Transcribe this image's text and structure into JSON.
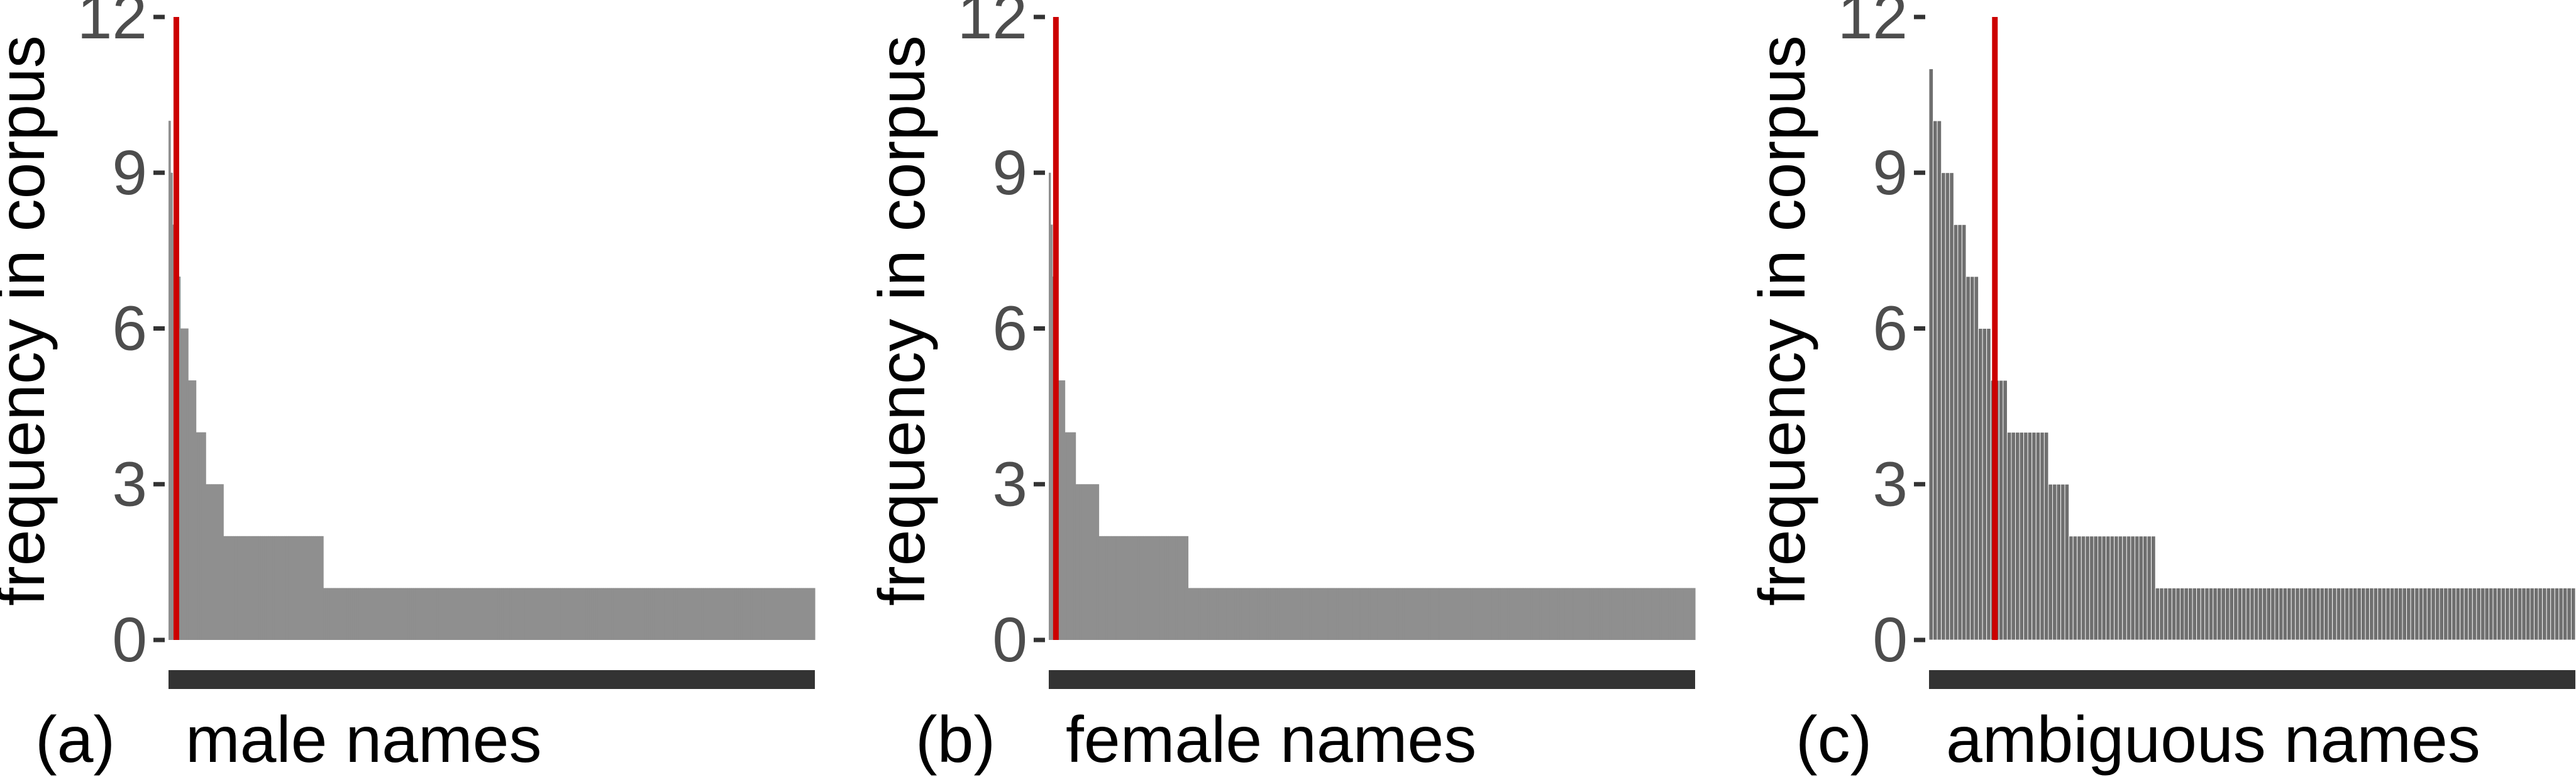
{
  "colors": {
    "bar": "#8f8f8f",
    "bar_dense": "#6f6f6f",
    "threshold": "#cc0000",
    "axis_text": "#4d4d4d",
    "tick": "#333333",
    "category_bar": "#333333"
  },
  "chart_data": [
    {
      "type": "bar",
      "panel_label": "(a)",
      "category_label": "male names",
      "ylabel": "frequency in corpus",
      "xlabel": "",
      "ylim": [
        0,
        12
      ],
      "yticks": [
        0,
        3,
        6,
        9,
        12
      ],
      "threshold_rank": 4,
      "bar_style": "smooth",
      "values": [
        10,
        9,
        8,
        8,
        7,
        7,
        6,
        6,
        6,
        6,
        5,
        5,
        5,
        5,
        4,
        4,
        4,
        4,
        4,
        3,
        3,
        3,
        3,
        3,
        3,
        3,
        3,
        3,
        2,
        2,
        2,
        2,
        2,
        2,
        2,
        2,
        2,
        2,
        2,
        2,
        2,
        2,
        2,
        2,
        2,
        2,
        2,
        2,
        2,
        2,
        2,
        2,
        2,
        2,
        2,
        2,
        2,
        2,
        2,
        2,
        2,
        2,
        2,
        2,
        2,
        2,
        2,
        2,
        2,
        2,
        2,
        2,
        2,
        2,
        2,
        2,
        2,
        2,
        2,
        1,
        1,
        1,
        1,
        1,
        1,
        1,
        1,
        1,
        1,
        1,
        1,
        1,
        1,
        1,
        1,
        1,
        1,
        1,
        1,
        1,
        1,
        1,
        1,
        1,
        1,
        1,
        1,
        1,
        1,
        1,
        1,
        1,
        1,
        1,
        1,
        1,
        1,
        1,
        1,
        1,
        1,
        1,
        1,
        1,
        1,
        1,
        1,
        1,
        1,
        1,
        1,
        1,
        1,
        1,
        1,
        1,
        1,
        1,
        1,
        1,
        1,
        1,
        1,
        1,
        1,
        1,
        1,
        1,
        1,
        1,
        1,
        1,
        1,
        1,
        1,
        1,
        1,
        1,
        1,
        1,
        1,
        1,
        1,
        1,
        1,
        1,
        1,
        1,
        1,
        1,
        1,
        1,
        1,
        1,
        1,
        1,
        1,
        1,
        1,
        1,
        1,
        1,
        1,
        1,
        1,
        1,
        1,
        1,
        1,
        1,
        1,
        1,
        1,
        1,
        1,
        1,
        1,
        1,
        1,
        1,
        1,
        1,
        1,
        1,
        1,
        1,
        1,
        1,
        1,
        1,
        1,
        1,
        1,
        1,
        1,
        1,
        1,
        1,
        1,
        1,
        1,
        1,
        1,
        1,
        1,
        1,
        1,
        1,
        1,
        1,
        1,
        1,
        1,
        1,
        1,
        1,
        1,
        1,
        1,
        1,
        1,
        1,
        1,
        1,
        1,
        1,
        1,
        1,
        1,
        1,
        1,
        1,
        1,
        1,
        1,
        1,
        1,
        1,
        1,
        1,
        1,
        1,
        1,
        1,
        1,
        1,
        1,
        1,
        1,
        1,
        1,
        1,
        1,
        1,
        1,
        1,
        1,
        1,
        1,
        1,
        1,
        1,
        1,
        1,
        1,
        1,
        1,
        1,
        1,
        1,
        1,
        1,
        1,
        1,
        1,
        1,
        1,
        1,
        1,
        1,
        1,
        1,
        1,
        1,
        1,
        1,
        1,
        1,
        1,
        1,
        1,
        1,
        1,
        1,
        1,
        1,
        1,
        1,
        1,
        1,
        1,
        1,
        1,
        1,
        1,
        1,
        1,
        1,
        1,
        1
      ]
    },
    {
      "type": "bar",
      "panel_label": "(b)",
      "category_label": "female names",
      "ylabel": "frequency in corpus",
      "xlabel": "",
      "ylim": [
        0,
        12
      ],
      "yticks": [
        0,
        3,
        6,
        9,
        12
      ],
      "threshold_rank": 4,
      "bar_style": "smooth",
      "values": [
        9,
        8,
        7,
        6,
        5,
        5,
        5,
        5,
        5,
        4,
        4,
        4,
        4,
        4,
        4,
        3,
        3,
        3,
        3,
        3,
        3,
        3,
        3,
        3,
        3,
        3,
        3,
        3,
        2,
        2,
        2,
        2,
        2,
        2,
        2,
        2,
        2,
        2,
        2,
        2,
        2,
        2,
        2,
        2,
        2,
        2,
        2,
        2,
        2,
        2,
        2,
        2,
        2,
        2,
        2,
        2,
        2,
        2,
        2,
        2,
        2,
        2,
        2,
        2,
        2,
        2,
        2,
        2,
        2,
        2,
        2,
        2,
        2,
        2,
        2,
        2,
        2,
        2,
        1,
        1,
        1,
        1,
        1,
        1,
        1,
        1,
        1,
        1,
        1,
        1,
        1,
        1,
        1,
        1,
        1,
        1,
        1,
        1,
        1,
        1,
        1,
        1,
        1,
        1,
        1,
        1,
        1,
        1,
        1,
        1,
        1,
        1,
        1,
        1,
        1,
        1,
        1,
        1,
        1,
        1,
        1,
        1,
        1,
        1,
        1,
        1,
        1,
        1,
        1,
        1,
        1,
        1,
        1,
        1,
        1,
        1,
        1,
        1,
        1,
        1,
        1,
        1,
        1,
        1,
        1,
        1,
        1,
        1,
        1,
        1,
        1,
        1,
        1,
        1,
        1,
        1,
        1,
        1,
        1,
        1,
        1,
        1,
        1,
        1,
        1,
        1,
        1,
        1,
        1,
        1,
        1,
        1,
        1,
        1,
        1,
        1,
        1,
        1,
        1,
        1,
        1,
        1,
        1,
        1,
        1,
        1,
        1,
        1,
        1,
        1,
        1,
        1,
        1,
        1,
        1,
        1,
        1,
        1,
        1,
        1,
        1,
        1,
        1,
        1,
        1,
        1,
        1,
        1,
        1,
        1,
        1,
        1,
        1,
        1,
        1,
        1,
        1,
        1,
        1,
        1,
        1,
        1,
        1,
        1,
        1,
        1,
        1,
        1,
        1,
        1,
        1,
        1,
        1,
        1,
        1,
        1,
        1,
        1,
        1,
        1,
        1,
        1,
        1,
        1,
        1,
        1,
        1,
        1,
        1,
        1,
        1,
        1,
        1,
        1,
        1,
        1,
        1,
        1,
        1,
        1,
        1,
        1,
        1,
        1,
        1,
        1,
        1,
        1,
        1,
        1,
        1,
        1,
        1,
        1,
        1,
        1,
        1,
        1,
        1,
        1,
        1,
        1,
        1,
        1,
        1,
        1,
        1,
        1,
        1,
        1,
        1,
        1,
        1,
        1,
        1,
        1,
        1,
        1,
        1,
        1,
        1,
        1,
        1,
        1,
        1,
        1,
        1,
        1,
        1,
        1,
        1,
        1,
        1,
        1,
        1,
        1,
        1,
        1,
        1,
        1,
        1,
        1,
        1,
        1,
        1,
        1,
        1,
        1,
        1,
        1,
        1,
        1,
        1,
        1,
        1,
        1,
        1,
        1,
        1,
        1,
        1,
        1,
        1,
        1,
        1,
        1,
        1,
        1,
        1,
        1,
        1,
        1,
        1,
        1,
        1,
        1,
        1,
        1,
        1,
        1,
        1,
        1
      ]
    },
    {
      "type": "bar",
      "panel_label": "(c)",
      "category_label": "ambiguous names",
      "ylabel": "frequency in corpus",
      "xlabel": "",
      "ylim": [
        0,
        12
      ],
      "yticks": [
        0,
        3,
        6,
        9,
        12
      ],
      "threshold_rank": 16,
      "bar_style": "outlined",
      "values": [
        11,
        10,
        10,
        9,
        9,
        9,
        8,
        8,
        8,
        7,
        7,
        7,
        6,
        6,
        6,
        5,
        5,
        5,
        5,
        4,
        4,
        4,
        4,
        4,
        4,
        4,
        4,
        4,
        4,
        3,
        3,
        3,
        3,
        3,
        2,
        2,
        2,
        2,
        2,
        2,
        2,
        2,
        2,
        2,
        2,
        2,
        2,
        2,
        2,
        2,
        2,
        2,
        2,
        2,
        2,
        1,
        1,
        1,
        1,
        1,
        1,
        1,
        1,
        1,
        1,
        1,
        1,
        1,
        1,
        1,
        1,
        1,
        1,
        1,
        1,
        1,
        1,
        1,
        1,
        1,
        1,
        1,
        1,
        1,
        1,
        1,
        1,
        1,
        1,
        1,
        1,
        1,
        1,
        1,
        1,
        1,
        1,
        1,
        1,
        1,
        1,
        1,
        1,
        1,
        1,
        1,
        1,
        1,
        1,
        1,
        1,
        1,
        1,
        1,
        1,
        1,
        1,
        1,
        1,
        1,
        1,
        1,
        1,
        1,
        1,
        1,
        1,
        1,
        1,
        1,
        1,
        1,
        1,
        1,
        1,
        1,
        1,
        1,
        1,
        1,
        1,
        1,
        1,
        1,
        1,
        1,
        1,
        1,
        1,
        1,
        1,
        1,
        1,
        1,
        1,
        1,
        1
      ]
    }
  ]
}
